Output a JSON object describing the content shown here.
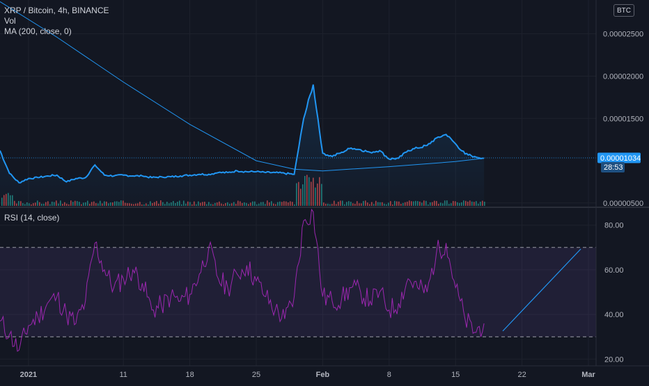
{
  "header": {
    "symbol_line": "XRP / Bitcoin, 4h, BINANCE",
    "vol_label": "Vol",
    "ma_label": "MA (200, close, 0)",
    "currency_button": "BTC"
  },
  "price_axis": {
    "ticks": [
      "0.00002500",
      "0.00002000",
      "0.00001500",
      "0.00000500"
    ],
    "tick_values": [
      2.5e-05,
      2e-05,
      1.5e-05,
      5e-06
    ],
    "current_price": "0.00001034",
    "countdown": "28:53"
  },
  "rsi_panel": {
    "label": "RSI (14, close)",
    "ticks": [
      "80.00",
      "60.00",
      "40.00",
      "20.00"
    ],
    "tick_values": [
      80,
      60,
      40,
      20
    ],
    "upper_band": 70,
    "lower_band": 30
  },
  "time_axis": {
    "labels": [
      "2021",
      "11",
      "18",
      "25",
      "Feb",
      "8",
      "15",
      "22",
      "Mar"
    ]
  },
  "colors": {
    "background": "#131722",
    "price_line": "#2196f3",
    "ma_line": "#2196f3",
    "rsi_line": "#9c27b0",
    "rsi_band_fill": "#7e57c2",
    "volume_up": "#26a69a",
    "volume_down": "#ef5350",
    "price_badge": "#2196f3",
    "drawn_trendline": "#2196f3",
    "axis_text": "#b2b5be"
  },
  "chart_data": [
    {
      "type": "line",
      "title": "XRP / Bitcoin, 4h, BINANCE",
      "x_range": [
        "2020-12-29",
        "2021-03-01"
      ],
      "y_range_btc": [
        4.5e-06,
        2.9e-05
      ],
      "series": [
        {
          "name": "XRP / Bitcoin",
          "x": [
            "2020-12-29",
            "2020-12-30",
            "2020-12-31",
            "2021-01-01",
            "2021-01-02",
            "2021-01-03",
            "2021-01-04",
            "2021-01-05",
            "2021-01-06",
            "2021-01-07",
            "2021-01-08",
            "2021-01-09",
            "2021-01-10",
            "2021-01-11",
            "2021-01-12",
            "2021-01-13",
            "2021-01-14",
            "2021-01-15",
            "2021-01-16",
            "2021-01-17",
            "2021-01-18",
            "2021-01-19",
            "2021-01-20",
            "2021-01-21",
            "2021-01-22",
            "2021-01-23",
            "2021-01-24",
            "2021-01-25",
            "2021-01-26",
            "2021-01-27",
            "2021-01-28",
            "2021-01-29",
            "2021-01-30",
            "2021-01-31",
            "2021-02-01",
            "2021-02-02",
            "2021-02-03",
            "2021-02-04",
            "2021-02-05",
            "2021-02-06",
            "2021-02-07",
            "2021-02-08",
            "2021-02-09",
            "2021-02-10",
            "2021-02-11",
            "2021-02-12",
            "2021-02-13",
            "2021-02-14",
            "2021-02-15",
            "2021-02-16",
            "2021-02-17",
            "2021-02-18"
          ],
          "values": [
            1.12e-05,
            8.5e-06,
            7.4e-06,
            7.9e-06,
            8e-06,
            8.2e-06,
            8.3e-06,
            7.5e-06,
            7.9e-06,
            8e-06,
            9.5e-06,
            8.3e-06,
            8.2e-06,
            8.3e-06,
            8.2e-06,
            8.2e-06,
            8e-06,
            8.1e-06,
            8.1e-06,
            8.2e-06,
            8.3e-06,
            8.4e-06,
            8.4e-06,
            8.6e-06,
            8.6e-06,
            8.8e-06,
            8.7e-06,
            8.7e-06,
            8.6e-06,
            8.6e-06,
            8.5e-06,
            8.4e-06,
            1.5e-05,
            1.9e-05,
            1.09e-05,
            1.05e-05,
            1.1e-05,
            1.15e-05,
            1.13e-05,
            1.1e-05,
            1.12e-05,
            1.02e-05,
            1.03e-05,
            1.12e-05,
            1.15e-05,
            1.18e-05,
            1.27e-05,
            1.31e-05,
            1.2e-05,
            1.08e-05,
            1.05e-05,
            1.03e-05
          ]
        },
        {
          "name": "MA (200, close, 0)",
          "x": [
            "2020-12-29",
            "2021-01-04",
            "2021-01-11",
            "2021-01-18",
            "2021-01-25",
            "2021-01-29",
            "2021-02-01",
            "2021-02-08",
            "2021-02-15",
            "2021-02-18"
          ],
          "values": [
            2.88e-05,
            2.46e-05,
            1.93e-05,
            1.43e-05,
            1e-05,
            9e-06,
            8.8e-06,
            9.3e-06,
            9.9e-06,
            1.03e-05
          ]
        }
      ]
    },
    {
      "type": "line",
      "title": "RSI (14, close)",
      "x_range": [
        "2020-12-29",
        "2021-03-01"
      ],
      "ylim": [
        17,
        88
      ],
      "bands": [
        30,
        70
      ],
      "series": [
        {
          "name": "RSI (14, close)",
          "x": [
            "2020-12-29",
            "2020-12-30",
            "2020-12-31",
            "2021-01-01",
            "2021-01-02",
            "2021-01-03",
            "2021-01-04",
            "2021-01-05",
            "2021-01-06",
            "2021-01-07",
            "2021-01-08",
            "2021-01-09",
            "2021-01-10",
            "2021-01-11",
            "2021-01-12",
            "2021-01-13",
            "2021-01-14",
            "2021-01-15",
            "2021-01-16",
            "2021-01-17",
            "2021-01-18",
            "2021-01-19",
            "2021-01-20",
            "2021-01-21",
            "2021-01-22",
            "2021-01-23",
            "2021-01-24",
            "2021-01-25",
            "2021-01-26",
            "2021-01-27",
            "2021-01-28",
            "2021-01-29",
            "2021-01-30",
            "2021-01-31",
            "2021-02-01",
            "2021-02-02",
            "2021-02-03",
            "2021-02-04",
            "2021-02-05",
            "2021-02-06",
            "2021-02-07",
            "2021-02-08",
            "2021-02-09",
            "2021-02-10",
            "2021-02-11",
            "2021-02-12",
            "2021-02-13",
            "2021-02-14",
            "2021-02-15",
            "2021-02-16",
            "2021-02-17",
            "2021-02-18"
          ],
          "values": [
            37,
            31,
            24,
            35,
            39,
            45,
            48,
            40,
            36,
            46,
            72,
            60,
            52,
            56,
            60,
            54,
            42,
            44,
            48,
            46,
            49,
            58,
            70,
            56,
            52,
            58,
            62,
            55,
            48,
            42,
            38,
            48,
            82,
            86,
            48,
            46,
            47,
            52,
            50,
            46,
            50,
            42,
            45,
            56,
            52,
            50,
            68,
            72,
            52,
            38,
            32,
            36
          ]
        }
      ]
    },
    {
      "type": "bar",
      "title": "Vol"
    }
  ]
}
